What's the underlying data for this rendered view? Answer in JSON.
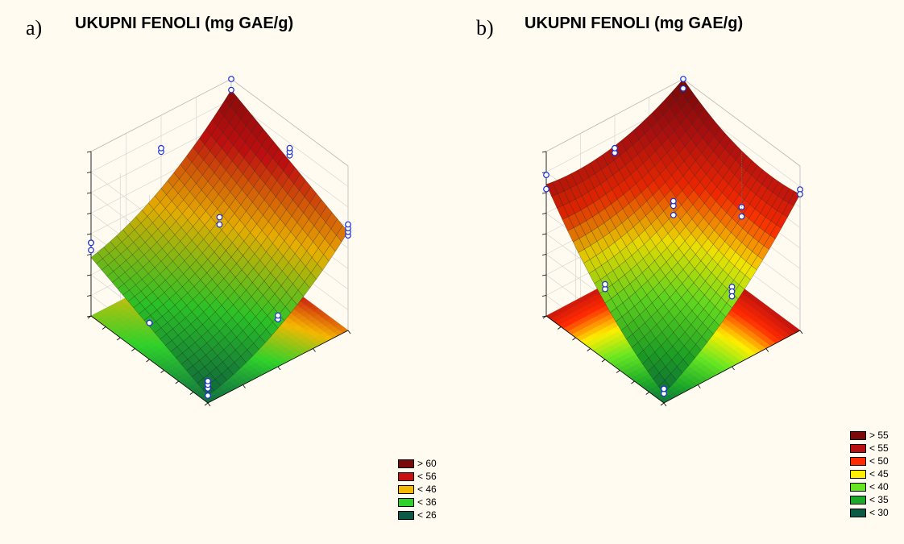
{
  "chart_data": [
    {
      "type": "surface3d",
      "panel_label": "a)",
      "title": "UKUPNI FENOLI (mg GAE/g)",
      "grid": true,
      "legend_placement": "bottom-right",
      "legend": [
        {
          "label": "> 60",
          "color": "#7a0a0a"
        },
        {
          "label": "< 56",
          "color": "#c81010"
        },
        {
          "label": "< 46",
          "color": "#f5b800"
        },
        {
          "label": "< 36",
          "color": "#2ed12a"
        },
        {
          "label": "< 26",
          "color": "#0a5a46"
        }
      ],
      "colors": [
        "#0a5a46",
        "#2ed12a",
        "#f5b800",
        "#c81010",
        "#7a0a0a"
      ],
      "x_range": [
        0,
        1
      ],
      "y_range": [
        0,
        1
      ],
      "z_range": [
        20,
        65
      ],
      "corner_values": {
        "front": 22,
        "left": 36,
        "right": 47,
        "back": 62
      },
      "curvature": {
        "x": 4,
        "y": 0
      },
      "points": [
        [
          0,
          0,
          22
        ],
        [
          0,
          0,
          24
        ],
        [
          0,
          0,
          25
        ],
        [
          0,
          0,
          26
        ],
        [
          0,
          0.5,
          30
        ],
        [
          0,
          0.5,
          30
        ],
        [
          0,
          1,
          38
        ],
        [
          0,
          1,
          40
        ],
        [
          0,
          1,
          40
        ],
        [
          0.5,
          0,
          33
        ],
        [
          0.5,
          0,
          34
        ],
        [
          0.5,
          0.5,
          47
        ],
        [
          0.5,
          0.5,
          49
        ],
        [
          0.5,
          1,
          55
        ],
        [
          0.5,
          1,
          56
        ],
        [
          1,
          0,
          46
        ],
        [
          1,
          0,
          47
        ],
        [
          1,
          0,
          48
        ],
        [
          1,
          0,
          49
        ],
        [
          1,
          0.5,
          56
        ],
        [
          1,
          0.5,
          57
        ],
        [
          1,
          0.5,
          58
        ],
        [
          1,
          1,
          62
        ],
        [
          1,
          1,
          65
        ]
      ]
    },
    {
      "type": "surface3d",
      "panel_label": "b)",
      "title": "UKUPNI FENOLI (mg GAE/g)",
      "grid": true,
      "legend_placement": "bottom-right",
      "legend": [
        {
          "label": "> 55",
          "color": "#7a0a0a"
        },
        {
          "label": "< 55",
          "color": "#b81010"
        },
        {
          "label": "< 50",
          "color": "#ff2a00"
        },
        {
          "label": "< 45",
          "color": "#ffee00"
        },
        {
          "label": "< 40",
          "color": "#66e622"
        },
        {
          "label": "< 35",
          "color": "#1eaa28"
        },
        {
          "label": "< 30",
          "color": "#0a5a46"
        }
      ],
      "colors": [
        "#0a5a46",
        "#1eaa28",
        "#66e622",
        "#ffee00",
        "#ff2a00",
        "#b81010",
        "#7a0a0a"
      ],
      "x_range": [
        0,
        1
      ],
      "y_range": [
        0,
        1
      ],
      "z_range": [
        25,
        60
      ],
      "corner_values": {
        "front": 27,
        "left": 53,
        "right": 54,
        "back": 60
      },
      "curvature": {
        "x": 3,
        "y": 3
      },
      "points": [
        [
          0,
          0,
          27
        ],
        [
          0,
          0,
          28
        ],
        [
          0,
          0,
          28
        ],
        [
          0,
          0.5,
          40
        ],
        [
          0,
          0.5,
          41
        ],
        [
          0,
          1,
          55
        ],
        [
          0,
          1,
          52
        ],
        [
          0.5,
          0,
          42
        ],
        [
          0.5,
          0,
          41
        ],
        [
          0.5,
          0,
          40
        ],
        [
          0.5,
          0.5,
          48
        ],
        [
          0.5,
          0.5,
          50
        ],
        [
          0.5,
          0.5,
          51
        ],
        [
          0.5,
          1,
          52
        ],
        [
          0.5,
          1,
          53
        ],
        [
          1,
          0,
          55
        ],
        [
          1,
          0,
          54
        ],
        [
          1,
          0.5,
          42
        ],
        [
          1,
          0.5,
          40
        ],
        [
          1,
          1,
          58
        ],
        [
          1,
          1,
          60
        ]
      ]
    }
  ]
}
